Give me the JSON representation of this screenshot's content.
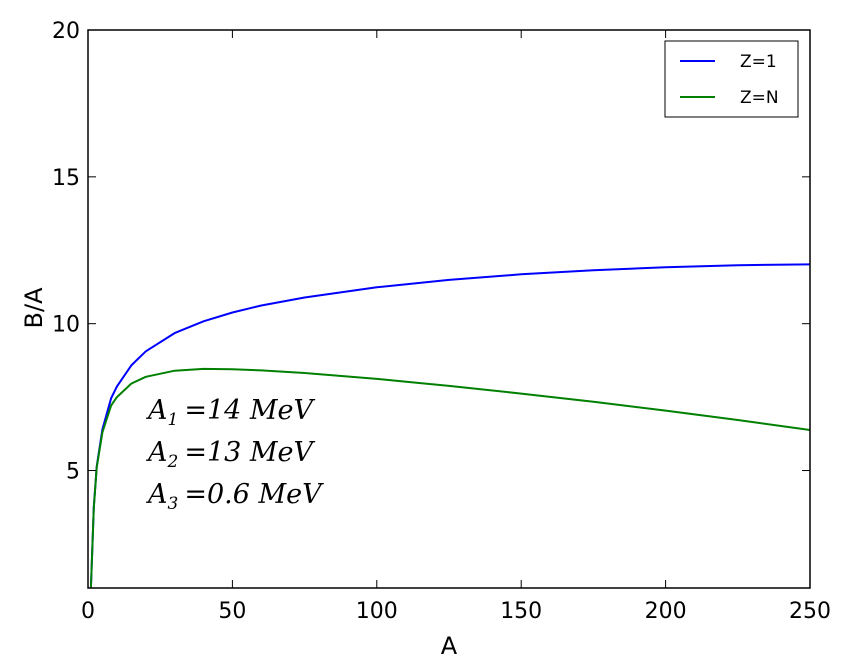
{
  "chart_data": {
    "type": "line",
    "title": "",
    "xlabel": "A",
    "ylabel": "B/A",
    "xlim": [
      0,
      250
    ],
    "ylim": [
      1,
      20
    ],
    "xticks": [
      0,
      50,
      100,
      150,
      200,
      250
    ],
    "yticks": [
      5,
      10,
      15,
      20
    ],
    "grid": false,
    "legend_position": "top-right",
    "series": [
      {
        "name": "Z=1",
        "color": "#0000ff",
        "x": [
          1,
          2,
          3,
          5,
          8,
          10,
          15,
          20,
          30,
          40,
          50,
          60,
          75,
          100,
          125,
          150,
          175,
          200,
          225,
          250
        ],
        "y": [
          1.0,
          3.75,
          5.13,
          6.4,
          7.46,
          7.86,
          8.58,
          9.06,
          9.68,
          10.08,
          10.38,
          10.62,
          10.89,
          11.24,
          11.49,
          11.68,
          11.82,
          11.92,
          11.99,
          12.02
        ]
      },
      {
        "name": "Z=N",
        "color": "#008000",
        "x": [
          1,
          2,
          3,
          5,
          8,
          10,
          15,
          20,
          30,
          40,
          50,
          60,
          75,
          100,
          125,
          150,
          175,
          200,
          225,
          250
        ],
        "y": [
          1.0,
          3.74,
          5.1,
          6.3,
          7.21,
          7.5,
          7.96,
          8.19,
          8.4,
          8.46,
          8.45,
          8.41,
          8.32,
          8.12,
          7.88,
          7.62,
          7.34,
          7.04,
          6.72,
          6.38
        ]
      }
    ],
    "annotations": [
      {
        "base": "A",
        "sub": "1",
        "rest": "=14  MeV"
      },
      {
        "base": "A",
        "sub": "2",
        "rest": "=13  MeV"
      },
      {
        "base": "A",
        "sub": "3",
        "rest": "=0.6  MeV"
      }
    ]
  }
}
